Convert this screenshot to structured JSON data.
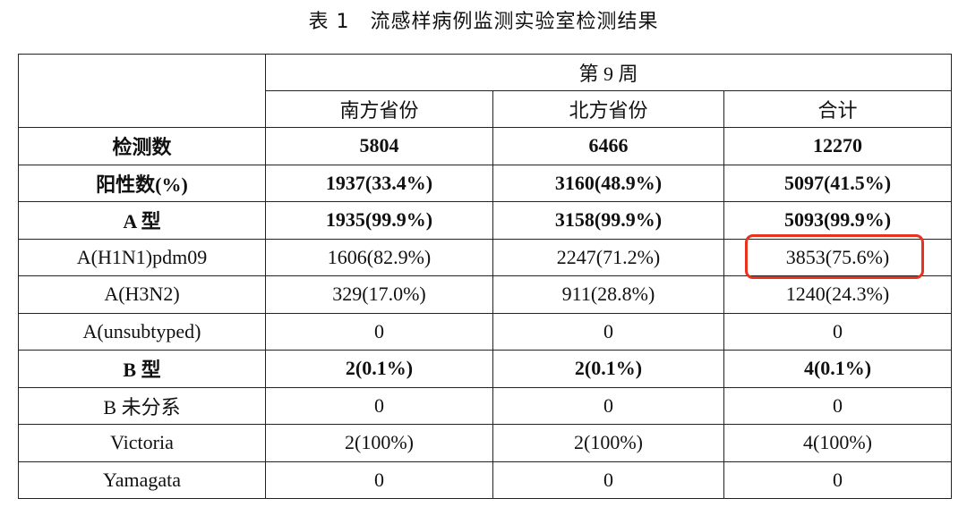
{
  "title": "表 1　流感样病例监测实验室检测结果",
  "table": {
    "week": "第 9 周",
    "columns": [
      "南方省份",
      "北方省份",
      "合计"
    ],
    "rows": [
      {
        "label": "检测数",
        "bold": true,
        "cells": [
          "5804",
          "6466",
          "12270"
        ]
      },
      {
        "label": "阳性数(%)",
        "bold": true,
        "cells": [
          "1937(33.4%)",
          "3160(48.9%)",
          "5097(41.5%)"
        ]
      },
      {
        "label": "A 型",
        "bold": true,
        "cells": [
          "1935(99.9%)",
          "3158(99.9%)",
          "5093(99.9%)"
        ]
      },
      {
        "label": "A(H1N1)pdm09",
        "bold": false,
        "cells": [
          "1606(82.9%)",
          "2247(71.2%)",
          "3853(75.6%)"
        ]
      },
      {
        "label": "A(H3N2)",
        "bold": false,
        "cells": [
          "329(17.0%)",
          "911(28.8%)",
          "1240(24.3%)"
        ]
      },
      {
        "label": "A(unsubtyped)",
        "bold": false,
        "cells": [
          "0",
          "0",
          "0"
        ]
      },
      {
        "label": "B 型",
        "bold": true,
        "cells": [
          "2(0.1%)",
          "2(0.1%)",
          "4(0.1%)"
        ]
      },
      {
        "label": "B 未分系",
        "bold": false,
        "cells": [
          "0",
          "0",
          "0"
        ]
      },
      {
        "label": "Victoria",
        "bold": false,
        "cells": [
          "2(100%)",
          "2(100%)",
          "4(100%)"
        ]
      },
      {
        "label": "Yamagata",
        "bold": false,
        "cells": [
          "0",
          "0",
          "0"
        ]
      }
    ]
  }
}
